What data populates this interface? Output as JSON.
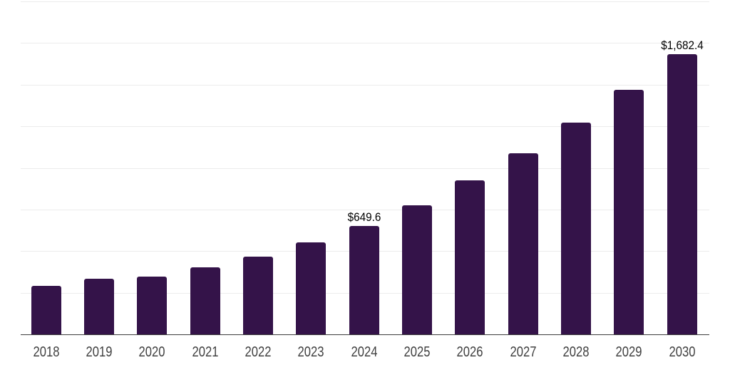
{
  "chart_data": {
    "type": "bar",
    "title": "",
    "xlabel": "",
    "ylabel": "",
    "categories": [
      "2018",
      "2019",
      "2020",
      "2021",
      "2022",
      "2023",
      "2024",
      "2025",
      "2026",
      "2027",
      "2028",
      "2029",
      "2030"
    ],
    "values": [
      290.6,
      332.2,
      345.1,
      402.2,
      465.3,
      551.1,
      649.6,
      773.1,
      923.2,
      1087.6,
      1272.1,
      1470.9,
      1682.4
    ],
    "data_labels": [
      {
        "index": 6,
        "category": "2024",
        "text": "$649.6"
      },
      {
        "index": 12,
        "category": "2030",
        "text": "$1,682.4"
      }
    ],
    "value_prefix": "$",
    "ylim": [
      0,
      2000
    ],
    "gridline_step": 250,
    "grid": "horizontal",
    "y_tick_labels_shown": false,
    "legend_position": "none",
    "colors": {
      "bar": "#341349",
      "gridline": "#ececec",
      "axis_line": "#3d3d3d",
      "x_tick_label": "#404040",
      "data_label": "#000000",
      "background": "#ffffff"
    }
  }
}
